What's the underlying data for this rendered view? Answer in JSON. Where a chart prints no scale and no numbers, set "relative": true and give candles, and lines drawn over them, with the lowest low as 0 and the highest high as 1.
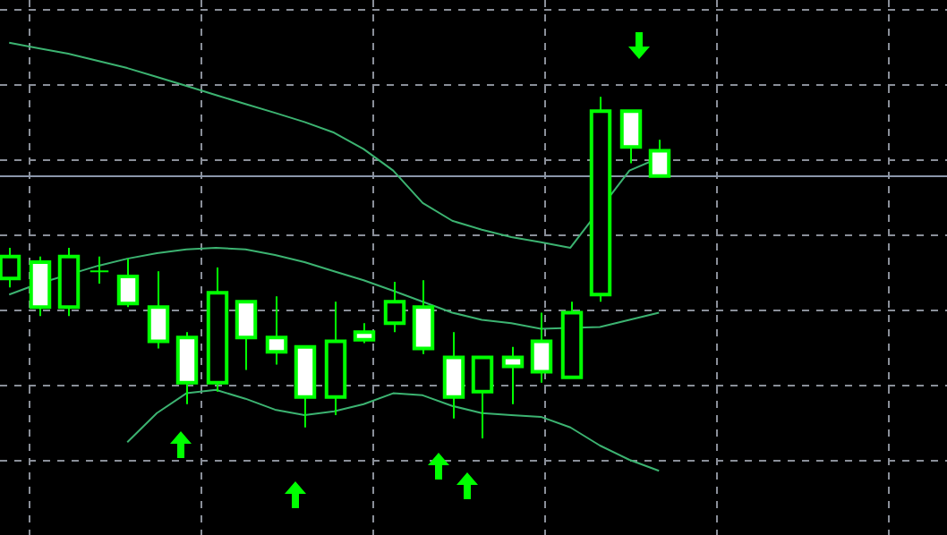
{
  "chart_data": {
    "type": "candlestick",
    "relative": true,
    "grid": true,
    "colors": [
      "#000000",
      "#ffffff",
      "#000000",
      "#00ff00",
      "#ffffff",
      "#ffffff",
      "#ffffff",
      "#000000",
      "#ffffff",
      "#ffffff",
      "#ffffff",
      "#000000",
      "#ffffff",
      "#000000",
      "#ffffff",
      "#ffffff",
      "#000000",
      "#ffffff",
      "#ffffff",
      "#000000",
      "#000000",
      "#ffffff",
      "#ffffff"
    ],
    "categories": [
      null,
      null,
      null,
      null,
      null,
      null,
      null,
      null,
      null,
      null,
      null,
      null,
      null,
      null,
      null,
      null,
      null,
      null,
      null,
      null,
      null,
      null,
      null
    ],
    "ohlc": [
      [
        0.468,
        0.558,
        0.442,
        0.532
      ],
      [
        0.516,
        0.532,
        0.358,
        0.384
      ],
      [
        0.384,
        0.558,
        0.358,
        0.532
      ],
      [
        0.489,
        0.532,
        0.453,
        0.489
      ],
      [
        0.474,
        0.526,
        0.384,
        0.395
      ],
      [
        0.384,
        0.489,
        0.263,
        0.284
      ],
      [
        0.295,
        0.311,
        0.1,
        0.163
      ],
      [
        0.163,
        0.5,
        0.137,
        0.426
      ],
      [
        0.4,
        0.4,
        0.2,
        0.295
      ],
      [
        0.295,
        0.416,
        0.216,
        0.253
      ],
      [
        0.268,
        0.268,
        0.032,
        0.121
      ],
      [
        0.121,
        0.4,
        0.068,
        0.284
      ],
      [
        0.311,
        0.337,
        0.279,
        0.289
      ],
      [
        0.337,
        0.458,
        0.311,
        0.4
      ],
      [
        0.384,
        0.463,
        0.247,
        0.263
      ],
      [
        0.237,
        0.311,
        0.058,
        0.121
      ],
      [
        0.137,
        0.237,
        0,
        0.237
      ],
      [
        0.237,
        0.268,
        0.1,
        0.211
      ],
      [
        0.284,
        0.368,
        0.163,
        0.195
      ],
      [
        0.179,
        0.4,
        0.179,
        0.368
      ],
      [
        0.421,
        1,
        0.4,
        0.958
      ],
      [
        0.958,
        0.958,
        0.805,
        0.853
      ],
      [
        0.842,
        0.874,
        0.768,
        0.768
      ]
    ],
    "series": [
      {
        "type": "line",
        "color": "#3cb371",
        "values": [
          1.158,
          1.142,
          1.126,
          1.105,
          1.084,
          1.058,
          1.032,
          1.005,
          0.979,
          0.953,
          0.926,
          0.895,
          0.847,
          0.784,
          0.689,
          0.637,
          0.611,
          0.589,
          0.574,
          0.558,
          null,
          0.784,
          0.821
        ]
      },
      {
        "type": "line",
        "color": "#3cb371",
        "values": [
          0.421,
          0.453,
          null,
          0.505,
          0.526,
          0.542,
          0.553,
          0.558,
          0.553,
          0.537,
          0.516,
          0.489,
          0.463,
          0.432,
          0.4,
          0.368,
          0.347,
          0.337,
          0.321,
          null,
          0.326,
          0.347,
          0.368
        ]
      },
      {
        "type": "line",
        "color": "#3cb371",
        "values": [
          null,
          null,
          null,
          null,
          -0.011,
          0.074,
          0.132,
          0.142,
          0.116,
          0.084,
          0.068,
          0.079,
          0.1,
          0.132,
          0.126,
          0.095,
          0.074,
          0.068,
          0.063,
          0.032,
          -0.021,
          -0.063,
          -0.095
        ]
      }
    ],
    "ref_lines": [
      {
        "axis": "y",
        "value": 0.768,
        "color": "#8a96aa"
      }
    ]
  }
}
